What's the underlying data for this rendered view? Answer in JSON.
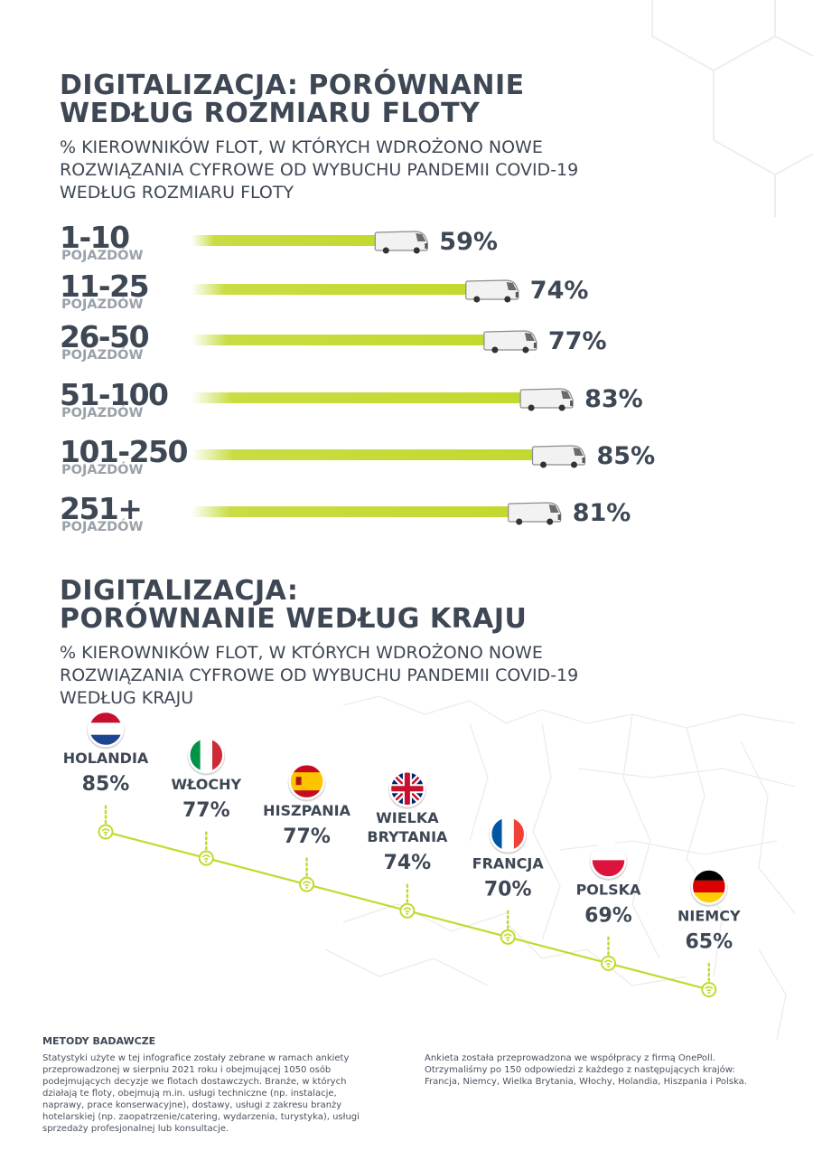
{
  "section1": {
    "title_line1": "DIGITALIZACJA: PORÓWNANIE",
    "title_line2": "WEDŁUG ROZMIARU FLOTY",
    "subtitle_line1": "% KIEROWNIKÓW FLOT, W KTÓRYCH WDROŻONO NOWE",
    "subtitle_line2": "ROZWIĄZANIA CYFROWE OD WYBUCHU PANDEMII COVID-19",
    "subtitle_line3": "WEDŁUG ROZMIARU FLOTY"
  },
  "section2": {
    "title_line1": "DIGITALIZACJA:",
    "title_line2": "PORÓWNANIE WEDŁUG KRAJU",
    "subtitle_line1": "% KIEROWNIKÓW FLOT, W KTÓRYCH WDROŻONO NOWE",
    "subtitle_line2": "ROZWIĄZANIA CYFROWE OD WYBUCHU PANDEMII COVID-19",
    "subtitle_line3": "WEDŁUG KRAJU"
  },
  "footer": {
    "title": "METODY BADAWCZE",
    "left": [
      "Statystyki użyte w tej infografice zostały zebrane w ramach ankiety",
      "przeprowadzonej w sierpniu 2021 roku i obejmującej 1050 osób",
      "podejmujących decyzje we flotach dostawczych. Branże, w których",
      "działają te floty, obejmują m.in. usługi techniczne (np. instalacje,",
      "naprawy, prace konserwacyjne), dostawy, usługi z zakresu branży",
      "hotelarskiej (np. zaopatrzenie/catering, wydarzenia, turystyka), usługi",
      "sprzedaży profesjonalnej lub konsultacje."
    ],
    "right": [
      "Ankieta została przeprowadzona we współpracy z firmą OnePoll.",
      "Otrzymaliśmy po 150 odpowiedzi z każdego z następujących krajów:",
      "Francja, Niemcy, Wielka Brytania, Włochy, Holandia, Hiszpania i Polska."
    ]
  },
  "colors": {
    "accent": "#c3d92e",
    "text": "#3e4754",
    "muted": "#9aa1a9"
  },
  "chart_data": [
    {
      "type": "bar",
      "orientation": "horizontal",
      "categories": [
        "1-10",
        "11-25",
        "26-50",
        "51-100",
        "101-250",
        "251+"
      ],
      "category_unit": "POJAZDÓW",
      "values": [
        59,
        74,
        77,
        83,
        85,
        81
      ],
      "value_labels": [
        "59%",
        "74%",
        "77%",
        "83%",
        "85%",
        "81%"
      ],
      "bar_end_icon": "van-icon"
    },
    {
      "type": "line",
      "categories": [
        "HOLANDIA",
        "WŁOCHY",
        "HISZPANIA",
        "WIELKA BRYTANIA",
        "FRANCJA",
        "POLSKA",
        "NIEMCY"
      ],
      "category_lines": [
        [
          "HOLANDIA"
        ],
        [
          "WŁOCHY"
        ],
        [
          "HISZPANIA"
        ],
        [
          "WIELKA",
          "BRYTANIA"
        ],
        [
          "FRANCJA"
        ],
        [
          "POLSKA"
        ],
        [
          "NIEMCY"
        ]
      ],
      "values": [
        85,
        77,
        77,
        74,
        70,
        69,
        65
      ],
      "value_labels": [
        "85%",
        "77%",
        "77%",
        "74%",
        "70%",
        "69%",
        "65%"
      ],
      "flags": [
        "flag-netherlands-icon",
        "flag-italy-icon",
        "flag-spain-icon",
        "flag-uk-icon",
        "flag-france-icon",
        "flag-poland-icon",
        "flag-germany-icon"
      ],
      "point_icon": "wifi-icon"
    }
  ]
}
